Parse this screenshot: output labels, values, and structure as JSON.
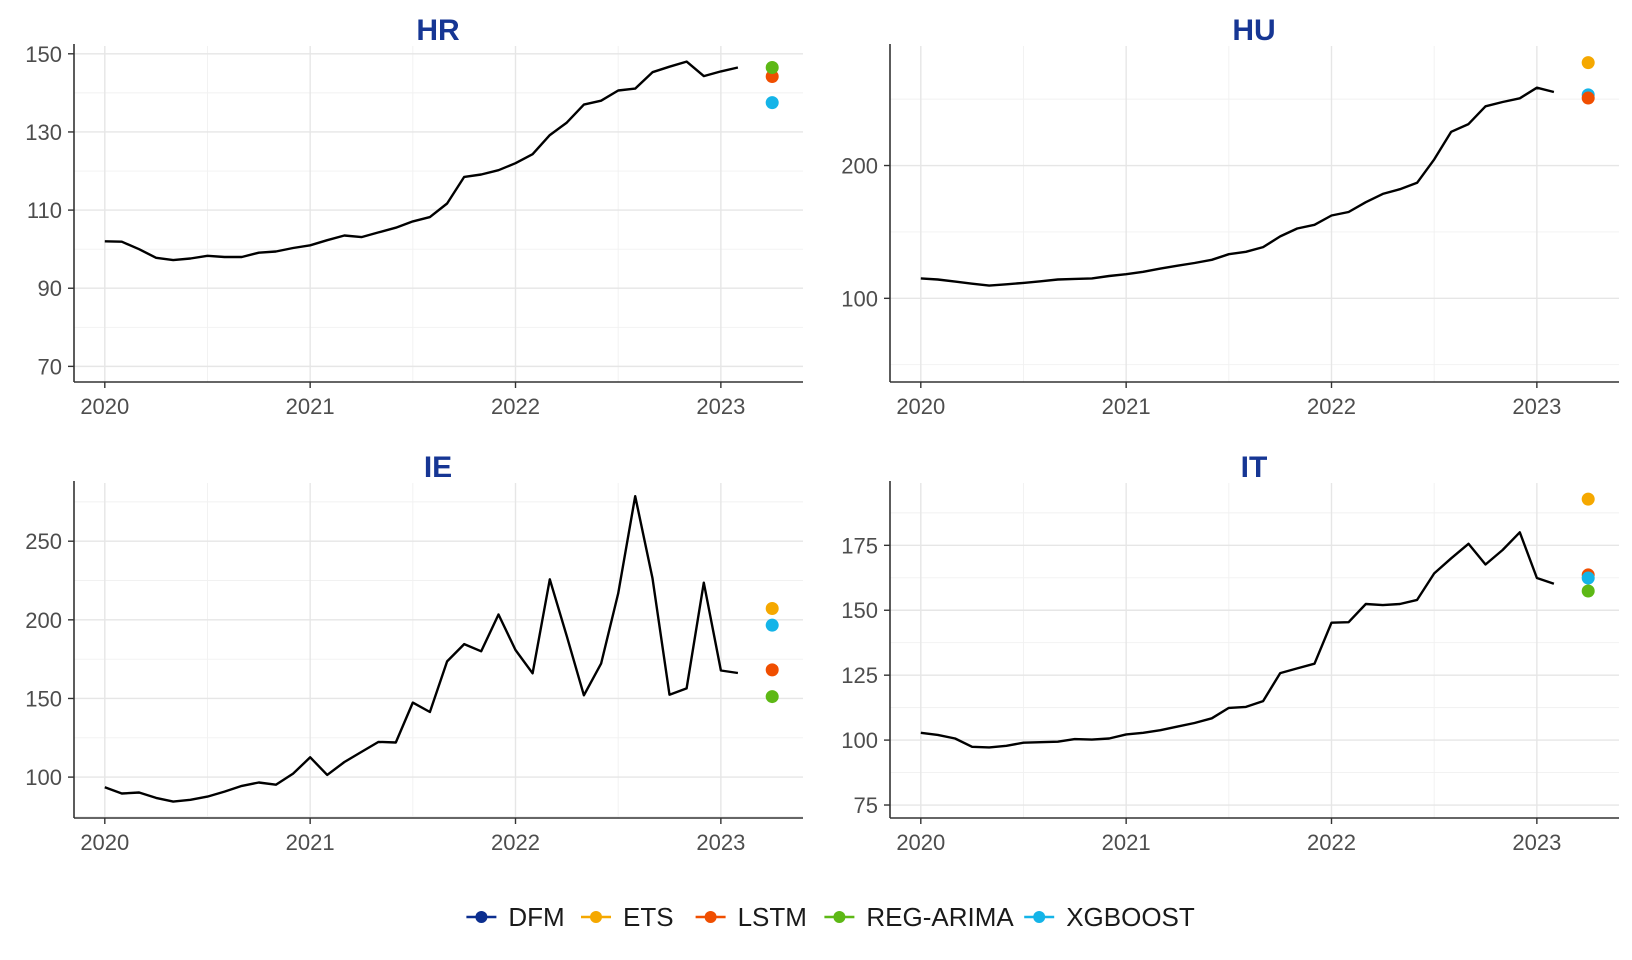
{
  "legend": {
    "items": [
      {
        "label": "DFM",
        "color": "#0B2E8F"
      },
      {
        "label": "ETS",
        "color": "#F5A800"
      },
      {
        "label": "LSTM",
        "color": "#F04E00"
      },
      {
        "label": "REG-ARIMA",
        "color": "#5DB815"
      },
      {
        "label": "XGBOOST",
        "color": "#14B4E8"
      }
    ]
  },
  "chart_data": [
    {
      "type": "line",
      "title": "HR",
      "xlim": [
        2019.85,
        2023.4
      ],
      "ylim": [
        66,
        152
      ],
      "x_ticks": [
        2020,
        2021,
        2022,
        2023
      ],
      "y_ticks": [
        70,
        90,
        110,
        130,
        150
      ],
      "grid": true,
      "series": [
        {
          "values": [
            [
              2020.0,
              102.0
            ],
            [
              2020.083,
              101.9
            ],
            [
              2020.167,
              100.0
            ],
            [
              2020.25,
              97.8
            ],
            [
              2020.333,
              97.2
            ],
            [
              2020.417,
              97.6
            ],
            [
              2020.5,
              98.3
            ],
            [
              2020.583,
              98.0
            ],
            [
              2020.667,
              98.0
            ],
            [
              2020.75,
              99.1
            ],
            [
              2020.833,
              99.4
            ],
            [
              2020.917,
              100.3
            ],
            [
              2021.0,
              101.0
            ],
            [
              2021.083,
              102.3
            ],
            [
              2021.167,
              103.5
            ],
            [
              2021.25,
              103.1
            ],
            [
              2021.333,
              104.3
            ],
            [
              2021.417,
              105.5
            ],
            [
              2021.5,
              107.1
            ],
            [
              2021.583,
              108.2
            ],
            [
              2021.667,
              111.7
            ],
            [
              2021.75,
              118.5
            ],
            [
              2021.833,
              119.1
            ],
            [
              2021.917,
              120.2
            ],
            [
              2022.0,
              122.0
            ],
            [
              2022.083,
              124.3
            ],
            [
              2022.167,
              129.2
            ],
            [
              2022.25,
              132.4
            ],
            [
              2022.333,
              137.0
            ],
            [
              2022.417,
              138.0
            ],
            [
              2022.5,
              140.6
            ],
            [
              2022.583,
              141.1
            ],
            [
              2022.667,
              145.3
            ],
            [
              2022.75,
              146.7
            ],
            [
              2022.833,
              148.0
            ],
            [
              2022.917,
              144.3
            ],
            [
              2023.0,
              145.5
            ],
            [
              2023.083,
              146.5
            ]
          ]
        }
      ],
      "forecasts": [
        {
          "model": "XGBOOST",
          "x": 2023.25,
          "y": 137.5
        },
        {
          "model": "LSTM",
          "x": 2023.25,
          "y": 144.2
        },
        {
          "model": "REG-ARIMA",
          "x": 2023.25,
          "y": 146.5
        }
      ]
    },
    {
      "type": "line",
      "title": "HU",
      "xlim": [
        2019.85,
        2023.4
      ],
      "ylim": [
        37,
        290
      ],
      "x_ticks": [
        2020,
        2021,
        2022,
        2023
      ],
      "y_ticks": [
        100,
        200
      ],
      "grid": true,
      "series": [
        {
          "values": [
            [
              2020.0,
              115.0
            ],
            [
              2020.083,
              114.2
            ],
            [
              2020.167,
              112.6
            ],
            [
              2020.25,
              111.0
            ],
            [
              2020.333,
              109.6
            ],
            [
              2020.417,
              110.6
            ],
            [
              2020.5,
              111.6
            ],
            [
              2020.583,
              112.8
            ],
            [
              2020.667,
              114.2
            ],
            [
              2020.75,
              114.6
            ],
            [
              2020.833,
              115.0
            ],
            [
              2020.917,
              116.8
            ],
            [
              2021.0,
              118.2
            ],
            [
              2021.083,
              120.0
            ],
            [
              2021.167,
              122.4
            ],
            [
              2021.25,
              124.6
            ],
            [
              2021.333,
              126.6
            ],
            [
              2021.417,
              129.0
            ],
            [
              2021.5,
              133.2
            ],
            [
              2021.583,
              135.0
            ],
            [
              2021.667,
              138.6
            ],
            [
              2021.75,
              146.6
            ],
            [
              2021.833,
              152.6
            ],
            [
              2021.917,
              155.4
            ],
            [
              2022.0,
              162.4
            ],
            [
              2022.083,
              165.0
            ],
            [
              2022.167,
              172.4
            ],
            [
              2022.25,
              178.6
            ],
            [
              2022.333,
              182.2
            ],
            [
              2022.417,
              187.0
            ],
            [
              2022.5,
              204.6
            ],
            [
              2022.583,
              225.4
            ],
            [
              2022.667,
              231.2
            ],
            [
              2022.75,
              244.6
            ],
            [
              2022.833,
              247.8
            ],
            [
              2022.917,
              250.6
            ],
            [
              2023.0,
              258.6
            ],
            [
              2023.083,
              255.4
            ]
          ]
        }
      ],
      "forecasts": [
        {
          "model": "ETS",
          "x": 2023.25,
          "y": 277.5
        },
        {
          "model": "XGBOOST",
          "x": 2023.25,
          "y": 253.2
        },
        {
          "model": "LSTM",
          "x": 2023.25,
          "y": 250.8
        }
      ]
    },
    {
      "type": "line",
      "title": "IE",
      "xlim": [
        2019.85,
        2023.4
      ],
      "ylim": [
        74,
        287
      ],
      "x_ticks": [
        2020,
        2021,
        2022,
        2023
      ],
      "y_ticks": [
        100,
        150,
        200,
        250
      ],
      "grid": true,
      "series": [
        {
          "values": [
            [
              2020.0,
              93.6
            ],
            [
              2020.083,
              89.6
            ],
            [
              2020.167,
              90.2
            ],
            [
              2020.25,
              86.8
            ],
            [
              2020.333,
              84.4
            ],
            [
              2020.417,
              85.6
            ],
            [
              2020.5,
              87.6
            ],
            [
              2020.583,
              90.8
            ],
            [
              2020.667,
              94.4
            ],
            [
              2020.75,
              96.6
            ],
            [
              2020.833,
              95.2
            ],
            [
              2020.917,
              102.2
            ],
            [
              2021.0,
              112.6
            ],
            [
              2021.083,
              101.4
            ],
            [
              2021.167,
              109.6
            ],
            [
              2021.25,
              116.0
            ],
            [
              2021.333,
              122.4
            ],
            [
              2021.417,
              122.0
            ],
            [
              2021.5,
              147.4
            ],
            [
              2021.583,
              141.4
            ],
            [
              2021.667,
              173.6
            ],
            [
              2021.75,
              184.6
            ],
            [
              2021.833,
              180.0
            ],
            [
              2021.917,
              203.4
            ],
            [
              2022.0,
              180.8
            ],
            [
              2022.083,
              166.0
            ],
            [
              2022.167,
              225.8
            ],
            [
              2022.25,
              189.6
            ],
            [
              2022.333,
              152.0
            ],
            [
              2022.417,
              172.2
            ],
            [
              2022.5,
              216.8
            ],
            [
              2022.583,
              278.6
            ],
            [
              2022.667,
              226.4
            ],
            [
              2022.75,
              152.4
            ],
            [
              2022.833,
              156.4
            ],
            [
              2022.917,
              223.6
            ],
            [
              2023.0,
              167.8
            ],
            [
              2023.083,
              166.2
            ]
          ]
        }
      ],
      "forecasts": [
        {
          "model": "ETS",
          "x": 2023.25,
          "y": 207.2
        },
        {
          "model": "XGBOOST",
          "x": 2023.25,
          "y": 196.6
        },
        {
          "model": "LSTM",
          "x": 2023.25,
          "y": 168.2
        },
        {
          "model": "REG-ARIMA",
          "x": 2023.25,
          "y": 151.2
        }
      ]
    },
    {
      "type": "line",
      "title": "IT",
      "xlim": [
        2019.85,
        2023.4
      ],
      "ylim": [
        70,
        199
      ],
      "x_ticks": [
        2020,
        2021,
        2022,
        2023
      ],
      "y_ticks": [
        75,
        100,
        125,
        150,
        175
      ],
      "grid": true,
      "series": [
        {
          "values": [
            [
              2020.0,
              102.8
            ],
            [
              2020.083,
              102.0
            ],
            [
              2020.167,
              100.6
            ],
            [
              2020.25,
              97.4
            ],
            [
              2020.333,
              97.2
            ],
            [
              2020.417,
              97.8
            ],
            [
              2020.5,
              99.0
            ],
            [
              2020.583,
              99.2
            ],
            [
              2020.667,
              99.4
            ],
            [
              2020.75,
              100.4
            ],
            [
              2020.833,
              100.2
            ],
            [
              2020.917,
              100.6
            ],
            [
              2021.0,
              102.2
            ],
            [
              2021.083,
              102.8
            ],
            [
              2021.167,
              103.8
            ],
            [
              2021.25,
              105.2
            ],
            [
              2021.333,
              106.6
            ],
            [
              2021.417,
              108.4
            ],
            [
              2021.5,
              112.4
            ],
            [
              2021.583,
              112.8
            ],
            [
              2021.667,
              115.0
            ],
            [
              2021.75,
              125.8
            ],
            [
              2021.833,
              127.6
            ],
            [
              2021.917,
              129.4
            ],
            [
              2022.0,
              145.2
            ],
            [
              2022.083,
              145.4
            ],
            [
              2022.167,
              152.4
            ],
            [
              2022.25,
              152.0
            ],
            [
              2022.333,
              152.4
            ],
            [
              2022.417,
              154.0
            ],
            [
              2022.5,
              164.2
            ],
            [
              2022.583,
              170.0
            ],
            [
              2022.667,
              175.6
            ],
            [
              2022.75,
              167.6
            ],
            [
              2022.833,
              173.2
            ],
            [
              2022.917,
              180.0
            ],
            [
              2023.0,
              162.4
            ],
            [
              2023.083,
              160.2
            ]
          ]
        }
      ],
      "forecasts": [
        {
          "model": "ETS",
          "x": 2023.25,
          "y": 192.8
        },
        {
          "model": "LSTM",
          "x": 2023.25,
          "y": 163.6
        },
        {
          "model": "XGBOOST",
          "x": 2023.25,
          "y": 162.4
        },
        {
          "model": "REG-ARIMA",
          "x": 2023.25,
          "y": 157.4
        }
      ]
    }
  ]
}
